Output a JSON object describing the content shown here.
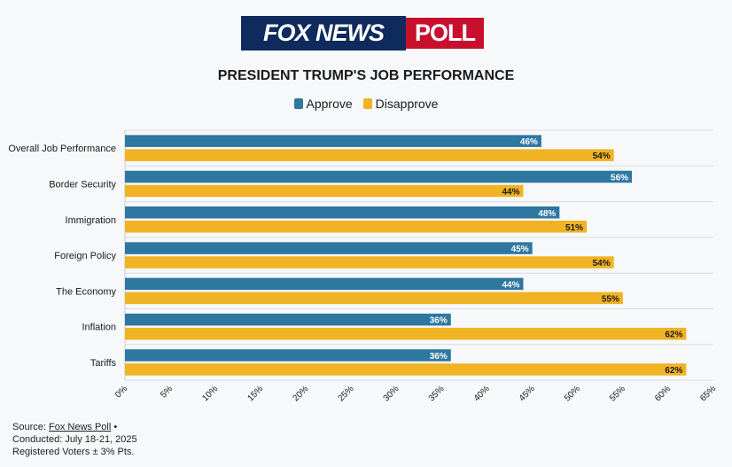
{
  "logo": {
    "left_text": "FOX NEWS",
    "right_text": "POLL"
  },
  "colors": {
    "approve": "#2e77a1",
    "disapprove": "#f0b323",
    "grid": "#d9dce0"
  },
  "chart_data": {
    "type": "bar",
    "orientation": "horizontal",
    "title": "PRESIDENT TRUMP'S JOB PERFORMANCE",
    "categories": [
      "Overall Job Performance",
      "Border Security",
      "Immigration",
      "Foreign Policy",
      "The Economy",
      "Inflation",
      "Tariffs"
    ],
    "series": [
      {
        "name": "Approve",
        "values": [
          46,
          56,
          48,
          45,
          44,
          36,
          36
        ]
      },
      {
        "name": "Disapprove",
        "values": [
          54,
          44,
          51,
          54,
          55,
          62,
          62
        ]
      }
    ],
    "xlim": [
      0,
      65
    ],
    "xticks": [
      "0%",
      "5%",
      "10%",
      "15%",
      "20%",
      "25%",
      "30%",
      "35%",
      "40%",
      "45%",
      "50%",
      "55%",
      "60%",
      "65%"
    ],
    "value_suffix": "%",
    "legend_position": "top-center",
    "grid": "horizontal separators"
  },
  "footer": {
    "source_label": "Source:",
    "source_link": "Fox News Poll",
    "source_bullet": "•",
    "conducted": "Conducted: July 18-21, 2025",
    "sample": "Registered Voters ± 3% Pts."
  }
}
